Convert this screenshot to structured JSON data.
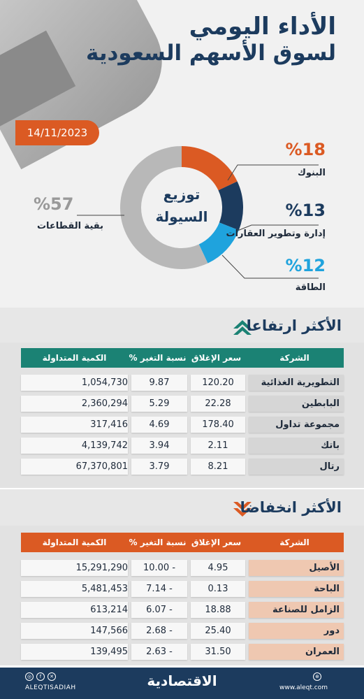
{
  "header": {
    "title_line1": "الأداء اليومي",
    "title_line2": "لسوق الأسهم السعودية",
    "date": "14/11/2023"
  },
  "donut": {
    "center_line1": "توزيع",
    "center_line2": "السيولة",
    "segments": [
      {
        "pct": "%18",
        "label": "البنوك",
        "value": 18,
        "color": "#db5a23"
      },
      {
        "pct": "%13",
        "label": "إدارة وتطوير العقارات",
        "value": 13,
        "color": "#1c3b5e"
      },
      {
        "pct": "%12",
        "label": "الطاقة",
        "value": 12,
        "color": "#1fa3dd"
      },
      {
        "pct": "%57",
        "label": "بقية القطاعات",
        "value": 57,
        "color": "#b8b8b8"
      }
    ]
  },
  "gainers": {
    "title": "الأكثر ارتفاعا",
    "header_color": "#1b8274",
    "headers": {
      "company": "الشركة",
      "close": "سعر الإغلاق",
      "change": "نسبة التغير %",
      "volume": "الكمية المتداولة"
    },
    "rows": [
      {
        "company": "التطويرية الغذائية",
        "close": "120.20",
        "change": "9.87",
        "volume": "1,054,730"
      },
      {
        "company": "البابطين",
        "close": "22.28",
        "change": "5.29",
        "volume": "2,360,294"
      },
      {
        "company": "مجموعة تداول",
        "close": "178.40",
        "change": "4.69",
        "volume": "317,416"
      },
      {
        "company": "باتك",
        "close": "2.11",
        "change": "3.94",
        "volume": "4,139,742"
      },
      {
        "company": "رتال",
        "close": "8.21",
        "change": "3.79",
        "volume": "67,370,801"
      }
    ]
  },
  "losers": {
    "title": "الأكثر انخفاضا",
    "header_color": "#db5a23",
    "headers": {
      "company": "الشركة",
      "close": "سعر الإغلاق",
      "change": "نسبة التغير %",
      "volume": "الكمية المتداولة"
    },
    "rows": [
      {
        "company": "الأصيل",
        "close": "4.95",
        "change": "10.00 -",
        "volume": "15,291,290"
      },
      {
        "company": "الباحة",
        "close": "0.13",
        "change": "7.14 -",
        "volume": "5,481,453"
      },
      {
        "company": "الزامل للصناعة",
        "close": "18.88",
        "change": "6.07 -",
        "volume": "613,214"
      },
      {
        "company": "دور",
        "close": "25.40",
        "change": "2.68 -",
        "volume": "147,566"
      },
      {
        "company": "العمران",
        "close": "31.50",
        "change": "2.63 -",
        "volume": "139,495"
      }
    ]
  },
  "footer": {
    "logo": "الاقتصادية",
    "handle": "ALEQTISADIAH",
    "site": "www.aleqt.com"
  }
}
